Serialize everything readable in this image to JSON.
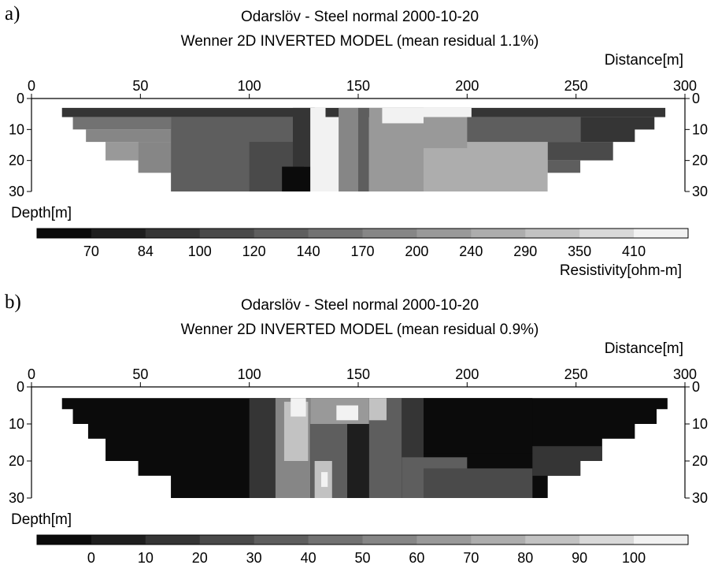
{
  "chart_data": [
    {
      "type": "heatmap",
      "panel_label": "a)",
      "title": "Odarslöv - Steel normal 2000-10-20",
      "subtitle": "Wenner 2D INVERTED MODEL (mean residual 1.1%)",
      "xlabel": "Distance[m]",
      "ylabel": "Depth[m]",
      "xlim": [
        0,
        300
      ],
      "ylim": [
        0,
        30
      ],
      "x_ticks": [
        "0",
        "50",
        "100",
        "150",
        "200",
        "250",
        "300"
      ],
      "y_ticks": [
        "0",
        "10",
        "20",
        "30"
      ],
      "colorbar": {
        "label": "Resistivity[ohm-m]",
        "ticks": [
          "70",
          "84",
          "100",
          "120",
          "140",
          "170",
          "200",
          "240",
          "290",
          "350",
          "410"
        ],
        "levels": 12
      },
      "model_extent_steps": [
        {
          "x_from": 9,
          "x_to": 296,
          "depth": 3
        },
        {
          "x_from": 14,
          "x_to": 291,
          "depth": 6
        },
        {
          "x_from": 19,
          "x_to": 286,
          "depth": 10
        },
        {
          "x_from": 25,
          "x_to": 277,
          "depth": 14
        },
        {
          "x_from": 34,
          "x_to": 267,
          "depth": 20
        },
        {
          "x_from": 49,
          "x_to": 252,
          "depth": 24
        },
        {
          "x_from": 64,
          "x_to": 237,
          "depth": 30
        }
      ],
      "regions": [
        {
          "x": [
            9,
            296
          ],
          "depth": [
            3,
            6
          ],
          "level": 2
        },
        {
          "x": [
            14,
            64
          ],
          "depth": [
            6,
            10
          ],
          "level": 5
        },
        {
          "x": [
            19,
            64
          ],
          "depth": [
            10,
            14
          ],
          "level": 6
        },
        {
          "x": [
            25,
            49
          ],
          "depth": [
            14,
            20
          ],
          "level": 7
        },
        {
          "x": [
            34,
            49
          ],
          "depth": [
            20,
            30
          ],
          "level": 7
        },
        {
          "x": [
            49,
            64
          ],
          "depth": [
            14,
            24
          ],
          "level": 6
        },
        {
          "x": [
            64,
            120
          ],
          "depth": [
            6,
            30
          ],
          "level": 4
        },
        {
          "x": [
            100,
            125
          ],
          "depth": [
            14,
            30
          ],
          "level": 3
        },
        {
          "x": [
            115,
            130
          ],
          "depth": [
            22,
            30
          ],
          "level": 0
        },
        {
          "x": [
            120,
            130
          ],
          "depth": [
            3,
            22
          ],
          "level": 2
        },
        {
          "x": [
            128,
            135
          ],
          "depth": [
            3,
            30
          ],
          "level": 11
        },
        {
          "x": [
            131,
            141
          ],
          "depth": [
            6,
            30
          ],
          "level": 11
        },
        {
          "x": [
            141,
            150
          ],
          "depth": [
            3,
            30
          ],
          "level": 6
        },
        {
          "x": [
            150,
            155
          ],
          "depth": [
            3,
            30
          ],
          "level": 4
        },
        {
          "x": [
            155,
            180
          ],
          "depth": [
            3,
            30
          ],
          "level": 7
        },
        {
          "x": [
            161,
            202
          ],
          "depth": [
            3,
            8
          ],
          "level": 11
        },
        {
          "x": [
            180,
            237
          ],
          "depth": [
            6,
            30
          ],
          "level": 8
        },
        {
          "x": [
            180,
            200
          ],
          "depth": [
            6,
            16
          ],
          "level": 7
        },
        {
          "x": [
            200,
            252
          ],
          "depth": [
            6,
            14
          ],
          "level": 4
        },
        {
          "x": [
            252,
            291
          ],
          "depth": [
            6,
            14
          ],
          "level": 2
        },
        {
          "x": [
            237,
            277
          ],
          "depth": [
            14,
            20
          ],
          "level": 3
        },
        {
          "x": [
            237,
            252
          ],
          "depth": [
            20,
            24
          ],
          "level": 4
        }
      ]
    },
    {
      "type": "heatmap",
      "panel_label": "b)",
      "title": "Odarslöv - Steel normal 2000-10-20",
      "subtitle": "Wenner 2D INVERTED MODEL (mean residual 0.9%)",
      "xlabel": "Distance[m]",
      "ylabel": "Depth[m]",
      "xlim": [
        0,
        300
      ],
      "ylim": [
        0,
        30
      ],
      "x_ticks": [
        "0",
        "50",
        "100",
        "150",
        "200",
        "250",
        "300"
      ],
      "y_ticks": [
        "0",
        "10",
        "20",
        "30"
      ],
      "colorbar": {
        "label": "",
        "ticks": [
          "0",
          "10",
          "20",
          "30",
          "40",
          "50",
          "60",
          "70",
          "80",
          "90",
          "100"
        ],
        "levels": 12
      },
      "model_extent_steps": [
        {
          "x_from": 9,
          "x_to": 297,
          "depth": 3
        },
        {
          "x_from": 14,
          "x_to": 292,
          "depth": 6
        },
        {
          "x_from": 19,
          "x_to": 287,
          "depth": 10
        },
        {
          "x_from": 26,
          "x_to": 277,
          "depth": 14
        },
        {
          "x_from": 34,
          "x_to": 262,
          "depth": 20
        },
        {
          "x_from": 49,
          "x_to": 252,
          "depth": 24
        },
        {
          "x_from": 64,
          "x_to": 237,
          "depth": 30
        }
      ],
      "regions": [
        {
          "x": [
            9,
            297
          ],
          "depth": [
            3,
            30
          ],
          "level": 0
        },
        {
          "x": [
            100,
            112
          ],
          "depth": [
            3,
            30
          ],
          "level": 2
        },
        {
          "x": [
            112,
            128
          ],
          "depth": [
            3,
            30
          ],
          "level": 6
        },
        {
          "x": [
            116,
            127
          ],
          "depth": [
            4,
            20
          ],
          "level": 9
        },
        {
          "x": [
            119,
            126
          ],
          "depth": [
            3,
            8
          ],
          "level": 11
        },
        {
          "x": [
            128,
            155
          ],
          "depth": [
            3,
            10
          ],
          "level": 7
        },
        {
          "x": [
            128,
            145
          ],
          "depth": [
            10,
            30
          ],
          "level": 4
        },
        {
          "x": [
            130,
            138
          ],
          "depth": [
            20,
            30
          ],
          "level": 9
        },
        {
          "x": [
            133,
            136
          ],
          "depth": [
            23,
            27
          ],
          "level": 11
        },
        {
          "x": [
            140,
            150
          ],
          "depth": [
            5,
            9
          ],
          "level": 11
        },
        {
          "x": [
            145,
            155
          ],
          "depth": [
            10,
            30
          ],
          "level": 1
        },
        {
          "x": [
            155,
            170
          ],
          "depth": [
            3,
            30
          ],
          "level": 4
        },
        {
          "x": [
            155,
            163
          ],
          "depth": [
            3,
            9
          ],
          "level": 9
        },
        {
          "x": [
            170,
            180
          ],
          "depth": [
            3,
            30
          ],
          "level": 2
        },
        {
          "x": [
            170,
            200
          ],
          "depth": [
            19,
            30
          ],
          "level": 4
        },
        {
          "x": [
            180,
            230
          ],
          "depth": [
            22,
            30
          ],
          "level": 3
        },
        {
          "x": [
            180,
            230
          ],
          "depth": [
            3,
            18
          ],
          "level": 0
        },
        {
          "x": [
            230,
            265
          ],
          "depth": [
            16,
            24
          ],
          "level": 2
        }
      ]
    }
  ]
}
